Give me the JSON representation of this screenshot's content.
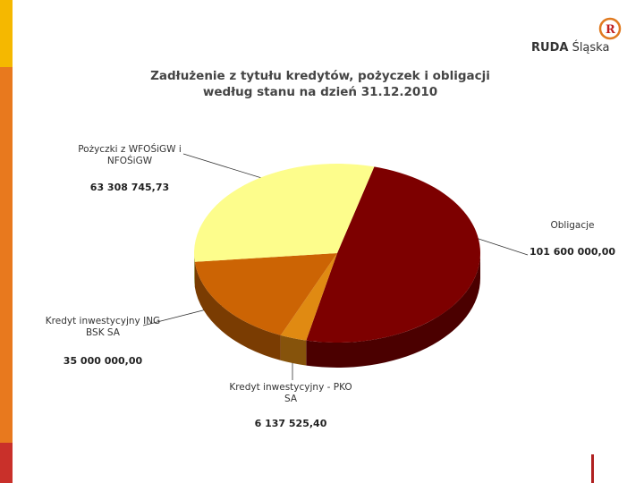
{
  "header": {
    "logo_bold": "RUDA",
    "logo_text": "Śląska"
  },
  "chart_data": {
    "type": "pie3d",
    "title": "Zadłużenie z tytułu kredytów, pożyczek i obligacji według stanu na dzień 31.12.2010",
    "categories": [
      "Obligacje",
      "Kredyt inwestycyjny - PKO SA",
      "Kredyt inwestycyjny ING BSK SA",
      "Pożyczki z WFOŚiGW i NFOŚiGW"
    ],
    "values": [
      101600000,
      6137525.4,
      35000000,
      63308745.73
    ],
    "value_labels": [
      "101 600 000,00",
      "6 137 525,40",
      "35 000 000,00",
      "63 308 745,73"
    ],
    "colors": [
      "#7d0000",
      "#e08a12",
      "#cc6404",
      "#fdfd8c"
    ]
  }
}
